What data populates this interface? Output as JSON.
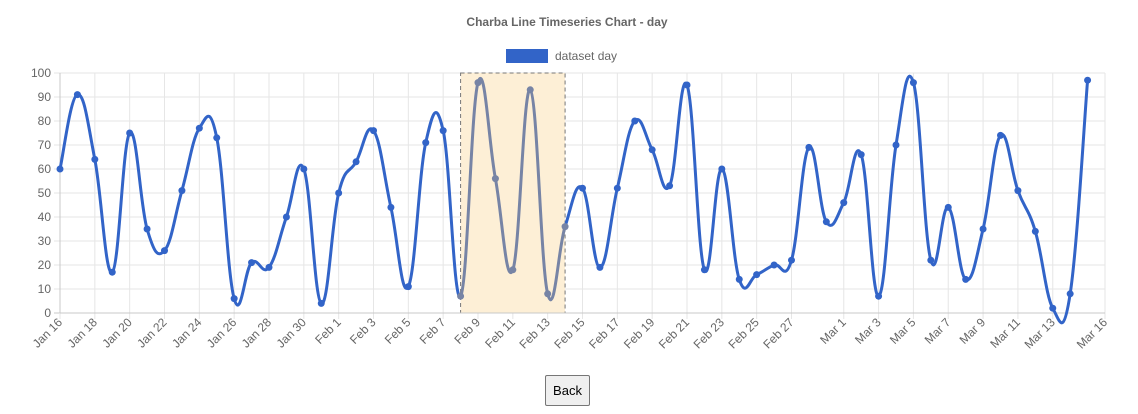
{
  "chart_data": {
    "type": "line",
    "title": "Charba Line Timeseries Chart - day",
    "legend": {
      "position": "top"
    },
    "grid": true,
    "ylim": [
      0,
      100
    ],
    "y_ticks": [
      "0",
      "10",
      "20",
      "30",
      "40",
      "50",
      "60",
      "70",
      "80",
      "90",
      "100"
    ],
    "x_range": [
      "2020-01-16",
      "2020-03-16"
    ],
    "x_ticks": [
      "Jan 16",
      "Jan 18",
      "Jan 20",
      "Jan 22",
      "Jan 24",
      "Jan 26",
      "Jan 28",
      "Jan 30",
      "Feb 1",
      "Feb 3",
      "Feb 5",
      "Feb 7",
      "Feb 9",
      "Feb 11",
      "Feb 13",
      "Feb 15",
      "Feb 17",
      "Feb 19",
      "Feb 21",
      "Feb 23",
      "Feb 25",
      "Feb 27",
      "Mar 1",
      "Mar 3",
      "Mar 5",
      "Mar 7",
      "Mar 9",
      "Mar 11",
      "Mar 13",
      "Mar 16"
    ],
    "x_tick_dates": [
      "2020-01-16",
      "2020-01-18",
      "2020-01-20",
      "2020-01-22",
      "2020-01-24",
      "2020-01-26",
      "2020-01-28",
      "2020-01-30",
      "2020-02-01",
      "2020-02-03",
      "2020-02-05",
      "2020-02-07",
      "2020-02-09",
      "2020-02-11",
      "2020-02-13",
      "2020-02-15",
      "2020-02-17",
      "2020-02-19",
      "2020-02-21",
      "2020-02-23",
      "2020-02-25",
      "2020-02-27",
      "2020-03-01",
      "2020-03-03",
      "2020-03-05",
      "2020-03-07",
      "2020-03-09",
      "2020-03-11",
      "2020-03-13",
      "2020-03-16"
    ],
    "highlight": {
      "from": "2020-02-08",
      "to": "2020-02-14",
      "fill": "#fdefd6",
      "line_color": "#7784a5"
    },
    "series": [
      {
        "name": "dataset day",
        "color": "#3264c8",
        "points": [
          [
            "2020-01-16",
            60
          ],
          [
            "2020-01-17",
            91
          ],
          [
            "2020-01-18",
            64
          ],
          [
            "2020-01-19",
            17
          ],
          [
            "2020-01-20",
            75
          ],
          [
            "2020-01-21",
            35
          ],
          [
            "2020-01-22",
            26
          ],
          [
            "2020-01-23",
            51
          ],
          [
            "2020-01-24",
            77
          ],
          [
            "2020-01-25",
            73
          ],
          [
            "2020-01-26",
            6
          ],
          [
            "2020-01-27",
            21
          ],
          [
            "2020-01-28",
            19
          ],
          [
            "2020-01-29",
            40
          ],
          [
            "2020-01-30",
            60
          ],
          [
            "2020-01-31",
            4
          ],
          [
            "2020-02-01",
            50
          ],
          [
            "2020-02-02",
            63
          ],
          [
            "2020-02-03",
            76
          ],
          [
            "2020-02-04",
            44
          ],
          [
            "2020-02-05",
            11
          ],
          [
            "2020-02-06",
            71
          ],
          [
            "2020-02-07",
            76
          ],
          [
            "2020-02-08",
            7
          ],
          [
            "2020-02-09",
            96
          ],
          [
            "2020-02-10",
            56
          ],
          [
            "2020-02-11",
            18
          ],
          [
            "2020-02-12",
            93
          ],
          [
            "2020-02-13",
            8
          ],
          [
            "2020-02-14",
            36
          ],
          [
            "2020-02-15",
            52
          ],
          [
            "2020-02-16",
            19
          ],
          [
            "2020-02-17",
            52
          ],
          [
            "2020-02-18",
            80
          ],
          [
            "2020-02-19",
            68
          ],
          [
            "2020-02-20",
            53
          ],
          [
            "2020-02-21",
            95
          ],
          [
            "2020-02-22",
            18
          ],
          [
            "2020-02-23",
            60
          ],
          [
            "2020-02-24",
            14
          ],
          [
            "2020-02-25",
            16
          ],
          [
            "2020-02-26",
            20
          ],
          [
            "2020-02-27",
            22
          ],
          [
            "2020-02-28",
            69
          ],
          [
            "2020-02-29",
            38
          ],
          [
            "2020-03-01",
            46
          ],
          [
            "2020-03-02",
            66
          ],
          [
            "2020-03-03",
            7
          ],
          [
            "2020-03-04",
            70
          ],
          [
            "2020-03-05",
            96
          ],
          [
            "2020-03-06",
            22
          ],
          [
            "2020-03-07",
            44
          ],
          [
            "2020-03-08",
            14
          ],
          [
            "2020-03-09",
            35
          ],
          [
            "2020-03-10",
            74
          ],
          [
            "2020-03-11",
            51
          ],
          [
            "2020-03-12",
            34
          ],
          [
            "2020-03-13",
            2
          ],
          [
            "2020-03-14",
            8
          ],
          [
            "2020-03-15",
            97
          ]
        ]
      }
    ]
  },
  "controls": {
    "back_label": "Back"
  }
}
